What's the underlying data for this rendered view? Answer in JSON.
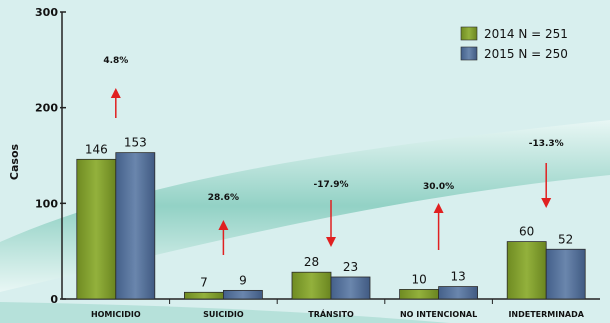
{
  "chart_data": {
    "type": "bar",
    "ylabel": "Casos",
    "ylim": [
      0,
      300
    ],
    "yticks": [
      0,
      100,
      200,
      300
    ],
    "categories": [
      "HOMICIDIO",
      "SUICIDIO",
      "TRÁNSITO",
      "NO INTENCIONAL",
      "INDETERMINADA"
    ],
    "series": [
      {
        "name": "2014 N = 251",
        "values": [
          146,
          7,
          28,
          10,
          60
        ],
        "color": "#7d9a2c"
      },
      {
        "name": "2015 N = 250",
        "values": [
          153,
          9,
          23,
          13,
          52
        ],
        "color": "#4f6a92"
      }
    ],
    "changes": [
      {
        "label": "4.8%",
        "direction": "up"
      },
      {
        "label": "28.6%",
        "direction": "up"
      },
      {
        "label": "-17.9%",
        "direction": "down"
      },
      {
        "label": "30.0%",
        "direction": "up"
      },
      {
        "label": "-13.3%",
        "direction": "down"
      }
    ],
    "arrow_color": "#e02020",
    "legend_position": "top-right",
    "grid": false
  }
}
